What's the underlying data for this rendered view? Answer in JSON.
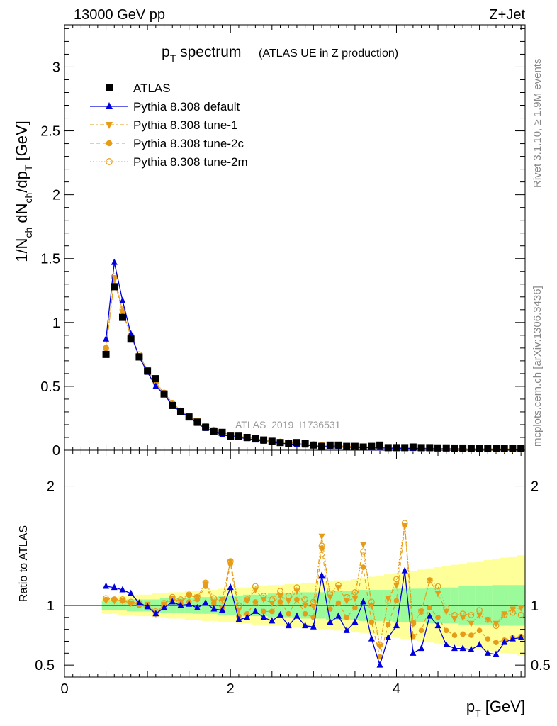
{
  "header": {
    "left": "13000 GeV pp",
    "right": "Z+Jet"
  },
  "title": {
    "main": "p",
    "main_sub": "T",
    "main_rest": " spectrum",
    "note": "(ATLAS UE in Z production)"
  },
  "side_labels": {
    "rivet": "Rivet 3.1.10, ≥ 1.9M events",
    "mcplots": "mcplots.cern.ch [arXiv:1306.3436]"
  },
  "watermark": "ATLAS_2019_I1736531",
  "colors": {
    "atlas": "#000000",
    "default": "#0000dd",
    "tunes": "#e69c17",
    "band_inner": "#9bfb9b",
    "band_outer": "#ffff99"
  },
  "chart_data": [
    {
      "type": "line",
      "panel": "main",
      "title": "p_T spectrum (ATLAS UE in Z production)",
      "xlabel": "p_T [GeV]",
      "ylabel": "1/N_ch dN_ch/dp_T [GeV]",
      "ylabel_parts": {
        "a": "1/N",
        "a_sub": "ch",
        "b": " dN",
        "b_sub": "ch",
        "c": "/dp",
        "c_sub": "T",
        "d": " [GeV]"
      },
      "xlabel_parts": {
        "a": "p",
        "a_sub": "T",
        "b": " [GeV]"
      },
      "xlim": [
        0,
        5.55
      ],
      "ylim": [
        0,
        3.33
      ],
      "yticks": [
        0,
        0.5,
        1,
        1.5,
        2,
        2.5,
        3
      ],
      "ytick_labels": [
        "0",
        "0.5",
        "1",
        "1.5",
        "2",
        "2.5",
        "3"
      ],
      "x": [
        0.5,
        0.6,
        0.7,
        0.8,
        0.9,
        1.0,
        1.1,
        1.2,
        1.3,
        1.4,
        1.5,
        1.6,
        1.7,
        1.8,
        1.9,
        2.0,
        2.1,
        2.2,
        2.3,
        2.4,
        2.5,
        2.6,
        2.7,
        2.8,
        2.9,
        3.0,
        3.1,
        3.2,
        3.3,
        3.4,
        3.5,
        3.6,
        3.7,
        3.8,
        3.9,
        4.0,
        4.1,
        4.2,
        4.3,
        4.4,
        4.5,
        4.6,
        4.7,
        4.8,
        4.9,
        5.0,
        5.1,
        5.2,
        5.3,
        5.4,
        5.5
      ],
      "series": [
        {
          "name": "ATLAS",
          "style": "data",
          "values": [
            0.75,
            1.28,
            1.04,
            0.87,
            0.73,
            0.62,
            0.56,
            0.44,
            0.35,
            0.3,
            0.26,
            0.22,
            0.18,
            0.15,
            0.14,
            0.11,
            0.11,
            0.1,
            0.09,
            0.08,
            0.07,
            0.06,
            0.05,
            0.06,
            0.05,
            0.04,
            0.03,
            0.04,
            0.04,
            0.03,
            0.03,
            0.025,
            0.03,
            0.04,
            0.02,
            0.02,
            0.02,
            0.025,
            0.02,
            0.02,
            0.018,
            0.018,
            0.017,
            0.017,
            0.016,
            0.016,
            0.015,
            0.015,
            0.014,
            0.014,
            0.013
          ]
        },
        {
          "name": "Pythia 8.308 default",
          "style": "default",
          "values": [
            0.87,
            1.47,
            1.17,
            0.91,
            0.73,
            0.61,
            0.5,
            0.44,
            0.35,
            0.3,
            0.26,
            0.21,
            0.17,
            0.15,
            0.12,
            0.11,
            0.1,
            0.09,
            0.08,
            0.07,
            0.06,
            0.055,
            0.05,
            0.045,
            0.04,
            0.035,
            0.03,
            0.028,
            0.026,
            0.024,
            0.022,
            0.02,
            0.018,
            0.017,
            0.016,
            0.015,
            0.014,
            0.013,
            0.012,
            0.011,
            0.01,
            0.01,
            0.009,
            0.009,
            0.008,
            0.008,
            0.008,
            0.007,
            0.007,
            0.007,
            0.006
          ]
        },
        {
          "name": "Pythia 8.308 tune-1",
          "style": "tune1",
          "values": [
            0.79,
            1.33,
            1.08,
            0.89,
            0.74,
            0.63,
            0.52,
            0.45,
            0.37,
            0.31,
            0.27,
            0.23,
            0.19,
            0.16,
            0.14,
            0.12,
            0.11,
            0.1,
            0.09,
            0.08,
            0.07,
            0.065,
            0.06,
            0.055,
            0.05,
            0.045,
            0.04,
            0.037,
            0.034,
            0.031,
            0.028,
            0.026,
            0.024,
            0.022,
            0.02,
            0.019,
            0.018,
            0.017,
            0.016,
            0.015,
            0.014,
            0.013,
            0.012,
            0.012,
            0.011,
            0.011,
            0.01,
            0.01,
            0.009,
            0.009,
            0.009
          ]
        },
        {
          "name": "Pythia 8.308 tune-2c",
          "style": "tune2c",
          "values": [
            0.8,
            1.35,
            1.09,
            0.89,
            0.74,
            0.63,
            0.52,
            0.45,
            0.37,
            0.31,
            0.27,
            0.23,
            0.19,
            0.16,
            0.14,
            0.12,
            0.11,
            0.1,
            0.09,
            0.08,
            0.07,
            0.065,
            0.06,
            0.055,
            0.05,
            0.045,
            0.04,
            0.037,
            0.034,
            0.031,
            0.028,
            0.026,
            0.024,
            0.022,
            0.02,
            0.019,
            0.018,
            0.017,
            0.016,
            0.015,
            0.014,
            0.013,
            0.012,
            0.012,
            0.011,
            0.011,
            0.01,
            0.01,
            0.009,
            0.009,
            0.009
          ]
        },
        {
          "name": "Pythia 8.308 tune-2m",
          "style": "tune2m",
          "values": [
            0.8,
            1.36,
            1.1,
            0.9,
            0.75,
            0.63,
            0.53,
            0.45,
            0.37,
            0.31,
            0.27,
            0.23,
            0.19,
            0.16,
            0.14,
            0.12,
            0.11,
            0.1,
            0.09,
            0.08,
            0.07,
            0.066,
            0.06,
            0.056,
            0.05,
            0.046,
            0.041,
            0.038,
            0.035,
            0.032,
            0.029,
            0.027,
            0.025,
            0.023,
            0.021,
            0.02,
            0.019,
            0.018,
            0.017,
            0.016,
            0.015,
            0.014,
            0.013,
            0.013,
            0.012,
            0.012,
            0.011,
            0.011,
            0.01,
            0.01,
            0.01
          ]
        }
      ],
      "legend": "top-left"
    },
    {
      "type": "line",
      "panel": "ratio",
      "ylabel": "Ratio to ATLAS",
      "ylim": [
        0.4,
        2.3
      ],
      "yticks": [
        0.5,
        1,
        2
      ],
      "ytick_labels": [
        "0.5",
        "1",
        "2"
      ],
      "xlim": [
        0,
        5.55
      ],
      "xticks": [
        0,
        2,
        4
      ],
      "xtick_labels": [
        "0",
        "2",
        "4"
      ],
      "x": [
        0.5,
        0.6,
        0.7,
        0.8,
        0.9,
        1.0,
        1.1,
        1.2,
        1.3,
        1.4,
        1.5,
        1.6,
        1.7,
        1.8,
        1.9,
        2.0,
        2.1,
        2.2,
        2.3,
        2.4,
        2.5,
        2.6,
        2.7,
        2.8,
        2.9,
        3.0,
        3.1,
        3.2,
        3.3,
        3.4,
        3.5,
        3.6,
        3.7,
        3.8,
        3.9,
        4.0,
        4.1,
        4.2,
        4.3,
        4.4,
        4.5,
        4.6,
        4.7,
        4.8,
        4.9,
        5.0,
        5.1,
        5.2,
        5.3,
        5.4,
        5.5
      ],
      "band_inner": [
        0.04,
        0.04,
        0.04,
        0.05,
        0.05,
        0.05,
        0.05,
        0.06,
        0.06,
        0.06,
        0.06,
        0.07,
        0.07,
        0.07,
        0.08,
        0.08,
        0.08,
        0.09,
        0.09,
        0.09,
        0.1,
        0.1,
        0.1,
        0.11,
        0.11,
        0.11,
        0.11,
        0.12,
        0.12,
        0.12,
        0.12,
        0.13,
        0.13,
        0.13,
        0.13,
        0.14,
        0.14,
        0.14,
        0.14,
        0.15,
        0.15,
        0.15,
        0.15,
        0.16,
        0.16,
        0.16,
        0.16,
        0.17,
        0.17,
        0.17,
        0.17
      ],
      "band_outer": [
        0.07,
        0.07,
        0.08,
        0.08,
        0.09,
        0.09,
        0.1,
        0.1,
        0.11,
        0.11,
        0.12,
        0.12,
        0.13,
        0.13,
        0.14,
        0.14,
        0.15,
        0.15,
        0.16,
        0.16,
        0.17,
        0.17,
        0.18,
        0.18,
        0.19,
        0.19,
        0.2,
        0.2,
        0.21,
        0.21,
        0.22,
        0.23,
        0.24,
        0.25,
        0.26,
        0.27,
        0.28,
        0.29,
        0.3,
        0.31,
        0.32,
        0.33,
        0.34,
        0.35,
        0.36,
        0.37,
        0.38,
        0.39,
        0.4,
        0.41,
        0.42
      ],
      "series": [
        {
          "name": "Pythia 8.308 default",
          "style": "default",
          "values": [
            1.16,
            1.15,
            1.13,
            1.1,
            1.02,
            0.99,
            0.93,
            0.98,
            1.03,
            1.0,
            1.01,
            0.98,
            1.02,
            0.97,
            0.96,
            1.15,
            0.88,
            0.9,
            0.95,
            0.9,
            0.87,
            0.92,
            0.83,
            0.91,
            0.83,
            0.82,
            1.25,
            0.86,
            0.91,
            0.79,
            0.86,
            1.03,
            0.72,
            0.5,
            0.73,
            0.83,
            1.29,
            0.6,
            0.64,
            0.91,
            0.83,
            0.67,
            0.64,
            0.64,
            0.63,
            0.67,
            0.6,
            0.59,
            0.69,
            0.72,
            0.73
          ]
        },
        {
          "name": "Pythia 8.308 tune-1",
          "style": "tune1",
          "values": [
            1.04,
            1.04,
            1.04,
            1.02,
            1.01,
            1.01,
            0.93,
            1.01,
            1.06,
            1.03,
            1.08,
            1.07,
            1.18,
            1.03,
            1.05,
            1.37,
            0.96,
            1.04,
            1.13,
            1.05,
            1.02,
            1.08,
            1.04,
            1.12,
            1.0,
            0.99,
            1.58,
            1.07,
            1.15,
            1.04,
            1.06,
            1.51,
            1.0,
            0.66,
            1.06,
            1.17,
            1.67,
            0.85,
            0.95,
            1.21,
            1.1,
            0.95,
            0.89,
            0.9,
            0.85,
            0.92,
            0.88,
            0.85,
            0.93,
            0.97,
            0.98
          ]
        },
        {
          "name": "Pythia 8.308 tune-2c",
          "style": "tune2c",
          "values": [
            1.05,
            1.05,
            1.04,
            1.02,
            1.0,
            0.98,
            0.93,
            0.99,
            1.05,
            1.02,
            1.03,
            1.05,
            1.16,
            1.02,
            0.98,
            1.35,
            0.91,
            0.93,
            1.03,
            0.95,
            0.95,
            1.03,
            0.93,
            1.05,
            0.93,
            0.9,
            1.48,
            0.97,
            1.02,
            0.9,
            0.98,
            1.32,
            0.86,
            0.57,
            0.84,
            1.04,
            1.67,
            0.74,
            0.79,
            0.98,
            0.9,
            0.79,
            0.75,
            0.76,
            0.75,
            0.79,
            0.72,
            0.69,
            0.71,
            0.73,
            0.74
          ]
        },
        {
          "name": "Pythia 8.308 tune-2m",
          "style": "tune2m",
          "values": [
            1.06,
            1.05,
            1.05,
            1.03,
            1.02,
            1.0,
            0.95,
            1.02,
            1.07,
            1.05,
            1.09,
            1.07,
            1.19,
            1.06,
            1.04,
            1.37,
            1.0,
            1.05,
            1.16,
            1.08,
            1.05,
            1.12,
            1.08,
            1.15,
            1.05,
            1.03,
            1.5,
            1.1,
            1.17,
            1.07,
            1.11,
            1.45,
            1.03,
            0.67,
            1.04,
            1.22,
            1.69,
            0.85,
            0.95,
            1.21,
            1.16,
            0.98,
            0.92,
            0.93,
            0.92,
            0.96,
            0.88,
            0.83,
            0.92,
            0.94,
            0.92
          ]
        }
      ]
    }
  ]
}
